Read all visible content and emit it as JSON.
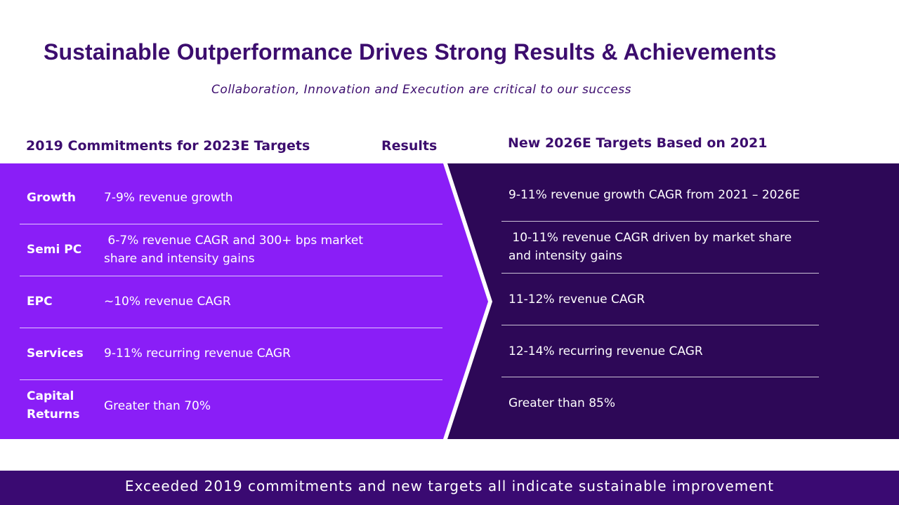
{
  "title": "Sustainable Outperformance Drives Strong Results & Achievements",
  "subtitle": "Collaboration, Innovation and Execution are critical to our success",
  "columns": {
    "commitments": "2019 Commitments for 2023E Targets",
    "results": "Results",
    "new_targets": "New 2026E Targets Based on 2021"
  },
  "rows": [
    {
      "label": "Growth",
      "commitment": "7-9% revenue growth",
      "target": "9-11% revenue growth CAGR from 2021 – 2026E"
    },
    {
      "label": "Semi PC",
      "commitment": " 6-7% revenue CAGR and 300+ bps market share and intensity gains",
      "target": " 10-11% revenue CAGR driven by market share and intensity gains"
    },
    {
      "label": "EPC",
      "commitment": "~10% revenue CAGR",
      "target": "11-12% revenue CAGR"
    },
    {
      "label": "Services",
      "commitment": "9-11% recurring revenue CAGR",
      "target": "12-14% recurring revenue CAGR"
    },
    {
      "label": "Capital Returns",
      "commitment": "Greater than 70%",
      "target": "Greater than 85%"
    }
  ],
  "footer": "Exceeded 2019 commitments and new targets all indicate sustainable improvement",
  "colors": {
    "title": "#3c0d6e",
    "left_panel": "#8a1ef7",
    "right_panel": "#2d0857",
    "footer": "#3a0a72"
  }
}
